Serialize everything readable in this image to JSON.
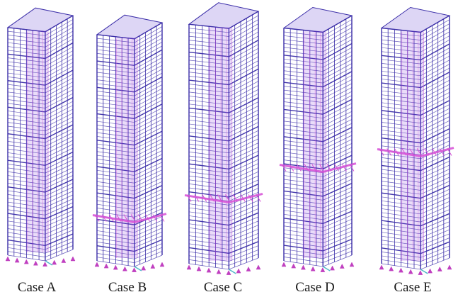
{
  "figure": {
    "cases": [
      {
        "label": "Case A",
        "outrigger_band": "none"
      },
      {
        "label": "Case B",
        "outrigger_band": "low"
      },
      {
        "label": "Case C",
        "outrigger_band": "low-mid"
      },
      {
        "label": "Case D",
        "outrigger_band": "mid"
      },
      {
        "label": "Case E",
        "outrigger_band": "upper-mid"
      }
    ],
    "colors": {
      "frame": "#3b2ea8",
      "brace": "#8a3fe0",
      "highlight": "#d64fd6",
      "support": "#c040c0",
      "base": "#4fb8c8"
    }
  }
}
